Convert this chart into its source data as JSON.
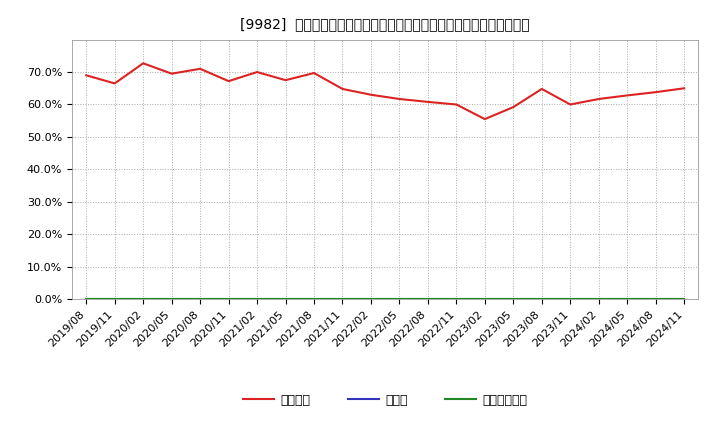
{
  "title": "[9982]  自己資本、のれん、繰延税金資産の総資産に対する比率の推移",
  "x_labels": [
    "2019/08",
    "2019/11",
    "2020/02",
    "2020/05",
    "2020/08",
    "2020/11",
    "2021/02",
    "2021/05",
    "2021/08",
    "2021/11",
    "2022/02",
    "2022/05",
    "2022/08",
    "2022/11",
    "2023/02",
    "2023/05",
    "2023/08",
    "2023/11",
    "2024/02",
    "2024/05",
    "2024/08",
    "2024/11"
  ],
  "equity_ratio": [
    0.69,
    0.665,
    0.727,
    0.695,
    0.71,
    0.672,
    0.7,
    0.675,
    0.697,
    0.648,
    0.63,
    0.617,
    0.608,
    0.6,
    0.555,
    0.592,
    0.648,
    0.6,
    0.617,
    0.628,
    0.638,
    0.65
  ],
  "goodwill_ratio": [
    0.0,
    0.0,
    0.0,
    0.0,
    0.0,
    0.0,
    0.0,
    0.0,
    0.0,
    0.0,
    0.0,
    0.0,
    0.0,
    0.0,
    0.0,
    0.0,
    0.0,
    0.0,
    0.0,
    0.0,
    0.0,
    0.0
  ],
  "deferred_tax_ratio": [
    0.0,
    0.0,
    0.0,
    0.0,
    0.0,
    0.0,
    0.0,
    0.0,
    0.0,
    0.0,
    0.0,
    0.0,
    0.0,
    0.0,
    0.0,
    0.0,
    0.0,
    0.0,
    0.0,
    0.0,
    0.0,
    0.0
  ],
  "equity_color": "#dd2222",
  "goodwill_color": "#3333bb",
  "deferred_tax_color": "#228822",
  "legend_labels": [
    "自己資本",
    "のれん",
    "繰延税金資産"
  ],
  "ylim_min": 0.0,
  "ylim_max": 0.8,
  "ytick_values": [
    0.0,
    0.1,
    0.2,
    0.3,
    0.4,
    0.5,
    0.6,
    0.7
  ],
  "background_color": "#ffffff",
  "grid_color": "#aaaaaa",
  "title_fontsize": 11,
  "tick_fontsize": 8,
  "legend_fontsize": 9,
  "line_width": 1.5
}
